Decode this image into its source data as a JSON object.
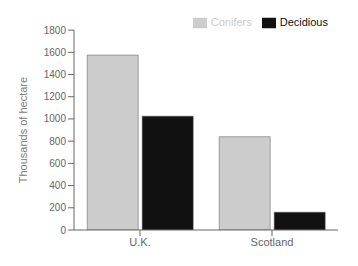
{
  "chart_data": {
    "type": "bar",
    "categories": [
      "U.K.",
      "Scotland"
    ],
    "series": [
      {
        "name": "Conifers",
        "color": "#cccccc",
        "values": [
          1575,
          840
        ]
      },
      {
        "name": "Decidious",
        "color": "#111111",
        "values": [
          1025,
          160
        ]
      }
    ],
    "ylabel": "Thousands of hectare",
    "ylim": [
      0,
      1800
    ],
    "yticks": [
      0,
      200,
      400,
      600,
      800,
      1000,
      1200,
      1400,
      1600,
      1800
    ],
    "grid": false,
    "legend": "upper right"
  }
}
